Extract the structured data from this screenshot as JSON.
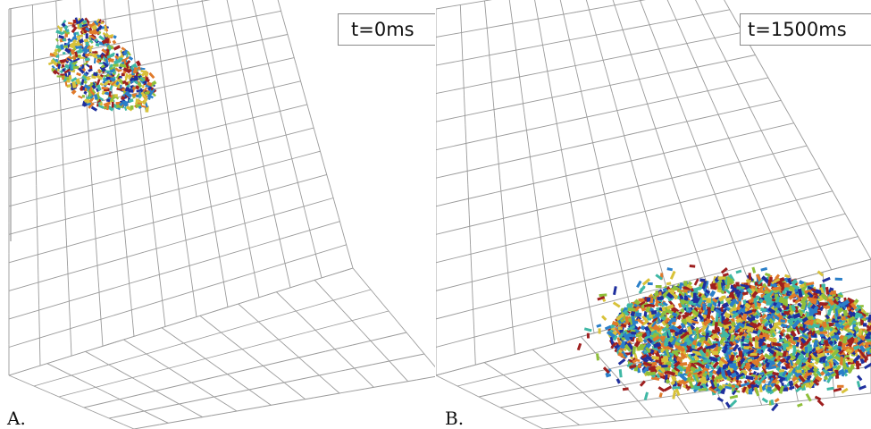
{
  "panels": [
    {
      "id": "A",
      "letter": "A.",
      "time_label": "t=0ms"
    },
    {
      "id": "B",
      "letter": "B.",
      "time_label": "t=1500ms"
    }
  ],
  "particle_colors": [
    "#1f2f9e",
    "#2a7fc9",
    "#3fb8a5",
    "#8fbf3a",
    "#d8c23a",
    "#e07a2a",
    "#9e1f1f"
  ],
  "grid_color": "#9a9a9a"
}
